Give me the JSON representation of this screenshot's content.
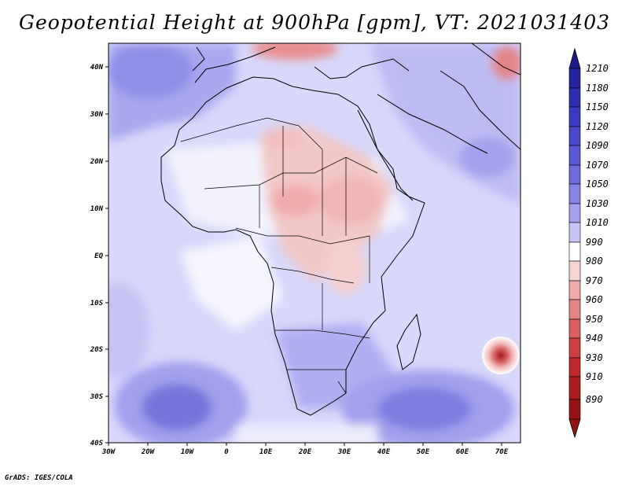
{
  "title": "Geopotential Height at 900hPa [gpm], VT: 2021031403",
  "footer": "GrADS: IGES/COLA",
  "map": {
    "lon_range": [
      -30,
      75
    ],
    "lat_range": [
      -40,
      45
    ],
    "lon_ticks": [
      "30W",
      "20W",
      "10W",
      "0",
      "10E",
      "20E",
      "30E",
      "40E",
      "50E",
      "60E",
      "70E"
    ],
    "lat_ticks": [
      "40N",
      "30N",
      "20N",
      "10N",
      "EQ",
      "10S",
      "20S",
      "30S",
      "40S"
    ]
  },
  "colorbar": {
    "labels": [
      "1210",
      "1180",
      "1150",
      "1120",
      "1090",
      "1070",
      "1050",
      "1030",
      "1010",
      "990",
      "980",
      "970",
      "960",
      "950",
      "940",
      "930",
      "910",
      "890"
    ],
    "colors": [
      "#1c1a8c",
      "#25239e",
      "#2f2db0",
      "#3b39bf",
      "#4a48c9",
      "#5a58d3",
      "#6e6cdb",
      "#8583e3",
      "#a3a1ec",
      "#c6c5f5",
      "#ffffff",
      "#f7d3d3",
      "#eeaaaa",
      "#e38585",
      "#d86060",
      "#cc4040",
      "#be2a2a",
      "#a81c1c",
      "#921414"
    ]
  },
  "map_colors": {
    "ocean_light": "#d8d8fb",
    "land_light": "#e8e8fb",
    "mid_blue": "#b7b6f0",
    "deep_blue": "#7775dc",
    "white": "#ffffff",
    "pink": "#f6d0d0",
    "pink_strong": "#efb0b0",
    "red_core": "#c0282a"
  }
}
